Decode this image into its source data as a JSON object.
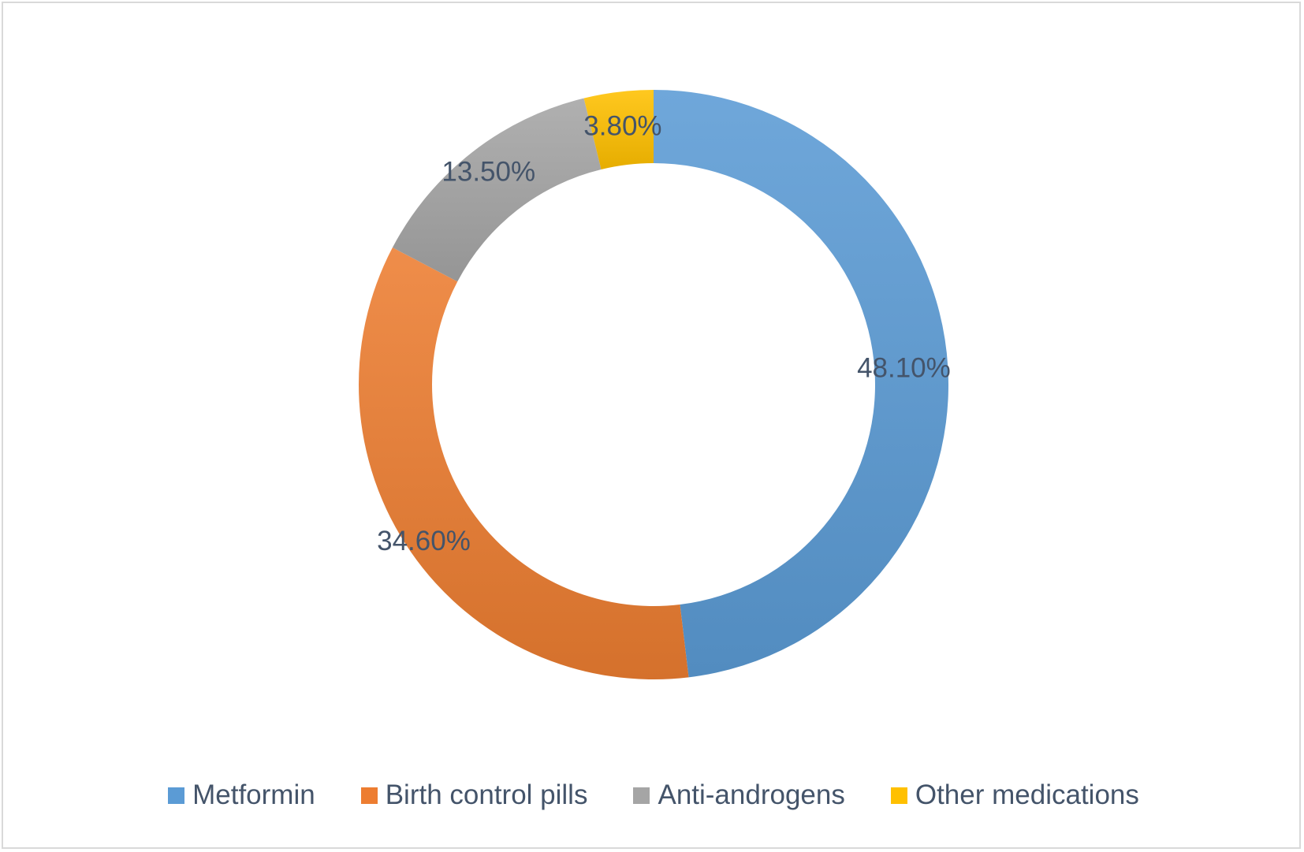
{
  "chart_data": {
    "type": "pie",
    "variant": "donut",
    "categories": [
      "Metformin",
      "Birth control pills",
      "Anti-androgens",
      "Other medications"
    ],
    "values": [
      48.1,
      34.6,
      13.5,
      3.8
    ],
    "labels": [
      "48.10%",
      "34.60%",
      "13.50%",
      "3.80%"
    ],
    "colors": [
      "#5b9bd5",
      "#ed7d31",
      "#a5a5a5",
      "#ffc000"
    ],
    "legend": "bottom"
  }
}
